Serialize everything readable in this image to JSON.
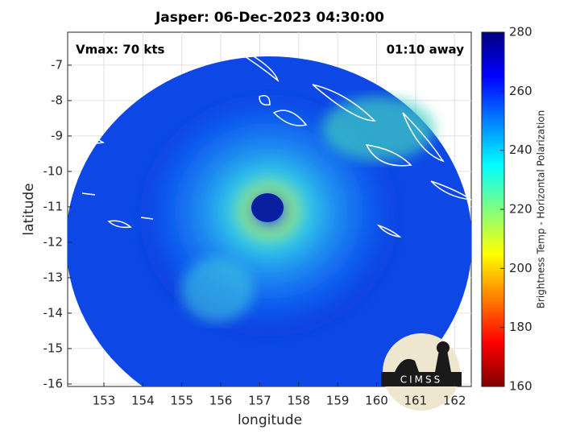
{
  "chart_data": {
    "type": "image-map",
    "title": "Jasper: 06-Dec-2023 04:30:00",
    "xlabel": "longitude",
    "ylabel": "latitude",
    "annotations": [
      "Vmax: 70 kts",
      "01:10 away"
    ],
    "logo": "CIMSS",
    "xlim": [
      152.07,
      162.43
    ],
    "xticks": [
      153,
      154,
      155,
      156,
      157,
      158,
      159,
      160,
      161,
      162
    ],
    "ylim": [
      -16.07,
      -6.07
    ],
    "yticks": [
      -7,
      -8,
      -9,
      -10,
      -11,
      -12,
      -13,
      -14,
      -15,
      -16
    ],
    "grid": true,
    "colorbar": {
      "label": "Brightness Temp - Horizontal Polarization",
      "lim": [
        160,
        280
      ],
      "ticks": [
        160,
        180,
        200,
        220,
        240,
        260,
        280
      ],
      "colormap": [
        "#800000",
        "#ff0000",
        "#ff8000",
        "#ffff00",
        "#80ff80",
        "#00ffff",
        "#0080ff",
        "#0000ff",
        "#000080"
      ]
    }
  }
}
